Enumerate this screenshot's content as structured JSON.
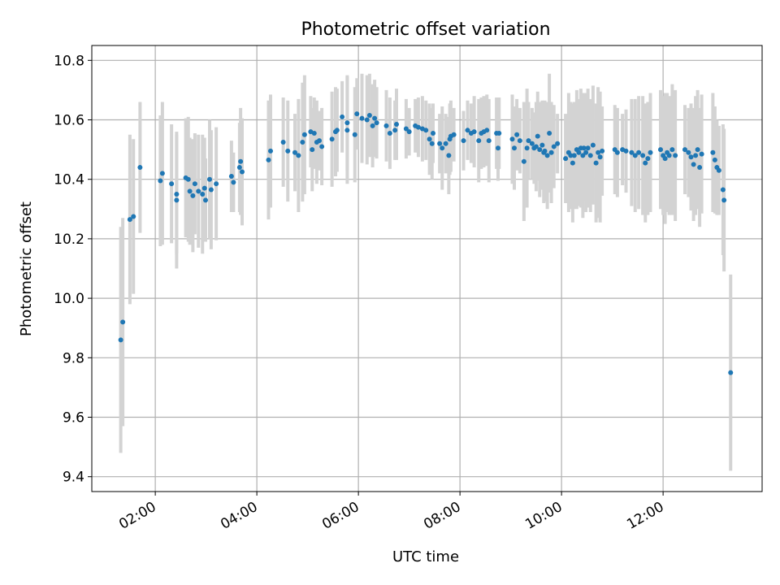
{
  "chart_data": {
    "type": "scatter",
    "title": "Photometric offset variation",
    "xlabel": "UTC time",
    "ylabel": "Photometric offset",
    "xlim": [
      0.75,
      13.95
    ],
    "ylim": [
      9.35,
      10.85
    ],
    "x_ticks": [
      {
        "value": 2,
        "label": "02:00"
      },
      {
        "value": 4,
        "label": "04:00"
      },
      {
        "value": 6,
        "label": "06:00"
      },
      {
        "value": 8,
        "label": "08:00"
      },
      {
        "value": 10,
        "label": "10:00"
      },
      {
        "value": 12,
        "label": "12:00"
      }
    ],
    "y_ticks": [
      {
        "value": 9.4,
        "label": "9.4"
      },
      {
        "value": 9.6,
        "label": "9.6"
      },
      {
        "value": 9.8,
        "label": "9.8"
      },
      {
        "value": 10.0,
        "label": "10.0"
      },
      {
        "value": 10.2,
        "label": "10.2"
      },
      {
        "value": 10.4,
        "label": "10.4"
      },
      {
        "value": 10.6,
        "label": "10.6"
      },
      {
        "value": 10.8,
        "label": "10.8"
      }
    ],
    "grid": true,
    "colors": {
      "marker": "#1f77b4",
      "errorbar": "#d3d3d3",
      "grid": "#b0b0b0",
      "axis": "#000000"
    },
    "series": [
      {
        "name": "offset",
        "points": [
          [
            1.32,
            9.86,
            0.38
          ],
          [
            1.36,
            9.92,
            0.35
          ],
          [
            1.5,
            10.265,
            0.285
          ],
          [
            1.57,
            10.275,
            0.26
          ],
          [
            1.7,
            10.44,
            0.22
          ],
          [
            2.1,
            10.395,
            0.22
          ],
          [
            2.14,
            10.42,
            0.24
          ],
          [
            2.32,
            10.385,
            0.2
          ],
          [
            2.42,
            10.35,
            0.2
          ],
          [
            2.42,
            10.33,
            0.23
          ],
          [
            2.6,
            10.405,
            0.2
          ],
          [
            2.65,
            10.4,
            0.21
          ],
          [
            2.68,
            10.36,
            0.18
          ],
          [
            2.74,
            10.345,
            0.19
          ],
          [
            2.78,
            10.385,
            0.17
          ],
          [
            2.85,
            10.36,
            0.19
          ],
          [
            2.93,
            10.35,
            0.2
          ],
          [
            2.97,
            10.37,
            0.17
          ],
          [
            2.99,
            10.33,
            0.14
          ],
          [
            3.07,
            10.4,
            0.2
          ],
          [
            3.1,
            10.365,
            0.2
          ],
          [
            3.2,
            10.385,
            0.19
          ],
          [
            3.5,
            10.41,
            0.12
          ],
          [
            3.54,
            10.39,
            0.1
          ],
          [
            3.66,
            10.44,
            0.15
          ],
          [
            3.68,
            10.46,
            0.18
          ],
          [
            3.71,
            10.425,
            0.18
          ],
          [
            4.23,
            10.465,
            0.2
          ],
          [
            4.27,
            10.495,
            0.19
          ],
          [
            4.52,
            10.525,
            0.15
          ],
          [
            4.61,
            10.495,
            0.17
          ],
          [
            4.75,
            10.49,
            0.13
          ],
          [
            4.82,
            10.48,
            0.19
          ],
          [
            4.9,
            10.525,
            0.2
          ],
          [
            4.94,
            10.55,
            0.2
          ],
          [
            5.06,
            10.56,
            0.12
          ],
          [
            5.09,
            10.5,
            0.14
          ],
          [
            5.13,
            10.555,
            0.12
          ],
          [
            5.18,
            10.525,
            0.14
          ],
          [
            5.23,
            10.53,
            0.1
          ],
          [
            5.28,
            10.51,
            0.13
          ],
          [
            5.48,
            10.535,
            0.16
          ],
          [
            5.55,
            10.56,
            0.15
          ],
          [
            5.58,
            10.565,
            0.14
          ],
          [
            5.68,
            10.61,
            0.12
          ],
          [
            5.78,
            10.59,
            0.16
          ],
          [
            5.78,
            10.565,
            0.18
          ],
          [
            5.93,
            10.55,
            0.16
          ],
          [
            5.97,
            10.62,
            0.12
          ],
          [
            6.07,
            10.605,
            0.15
          ],
          [
            6.17,
            10.6,
            0.15
          ],
          [
            6.22,
            10.615,
            0.14
          ],
          [
            6.28,
            10.58,
            0.14
          ],
          [
            6.32,
            10.605,
            0.13
          ],
          [
            6.36,
            10.59,
            0.12
          ],
          [
            6.55,
            10.58,
            0.12
          ],
          [
            6.62,
            10.555,
            0.12
          ],
          [
            6.72,
            10.565,
            0.1
          ],
          [
            6.75,
            10.585,
            0.12
          ],
          [
            6.94,
            10.57,
            0.1
          ],
          [
            7.0,
            10.56,
            0.08
          ],
          [
            7.12,
            10.58,
            0.09
          ],
          [
            7.18,
            10.575,
            0.1
          ],
          [
            7.26,
            10.57,
            0.11
          ],
          [
            7.33,
            10.565,
            0.1
          ],
          [
            7.4,
            10.535,
            0.12
          ],
          [
            7.45,
            10.52,
            0.12
          ],
          [
            7.47,
            10.555,
            0.1
          ],
          [
            7.6,
            10.52,
            0.1
          ],
          [
            7.65,
            10.505,
            0.14
          ],
          [
            7.72,
            10.52,
            0.1
          ],
          [
            7.78,
            10.48,
            0.13
          ],
          [
            7.8,
            10.535,
            0.12
          ],
          [
            7.82,
            10.545,
            0.12
          ],
          [
            7.88,
            10.55,
            0.09
          ],
          [
            8.07,
            10.53,
            0.1
          ],
          [
            8.15,
            10.565,
            0.1
          ],
          [
            8.22,
            10.555,
            0.1
          ],
          [
            8.28,
            10.56,
            0.12
          ],
          [
            8.37,
            10.53,
            0.14
          ],
          [
            8.42,
            10.555,
            0.12
          ],
          [
            8.47,
            10.56,
            0.12
          ],
          [
            8.53,
            10.565,
            0.12
          ],
          [
            8.57,
            10.53,
            0.14
          ],
          [
            8.72,
            10.555,
            0.12
          ],
          [
            8.75,
            10.505,
            0.11
          ],
          [
            8.77,
            10.555,
            0.12
          ],
          [
            9.03,
            10.535,
            0.15
          ],
          [
            9.07,
            10.505,
            0.14
          ],
          [
            9.12,
            10.55,
            0.12
          ],
          [
            9.18,
            10.53,
            0.11
          ],
          [
            9.26,
            10.46,
            0.2
          ],
          [
            9.32,
            10.505,
            0.2
          ],
          [
            9.35,
            10.53,
            0.13
          ],
          [
            9.42,
            10.52,
            0.12
          ],
          [
            9.46,
            10.505,
            0.12
          ],
          [
            9.5,
            10.51,
            0.15
          ],
          [
            9.53,
            10.545,
            0.15
          ],
          [
            9.57,
            10.5,
            0.16
          ],
          [
            9.62,
            10.515,
            0.15
          ],
          [
            9.65,
            10.49,
            0.17
          ],
          [
            9.67,
            10.495,
            0.17
          ],
          [
            9.72,
            10.48,
            0.18
          ],
          [
            9.76,
            10.555,
            0.2
          ],
          [
            9.8,
            10.49,
            0.17
          ],
          [
            9.85,
            10.51,
            0.14
          ],
          [
            9.92,
            10.52,
            0.1
          ],
          [
            10.08,
            10.47,
            0.15
          ],
          [
            10.14,
            10.49,
            0.2
          ],
          [
            10.18,
            10.48,
            0.18
          ],
          [
            10.22,
            10.455,
            0.2
          ],
          [
            10.25,
            10.48,
            0.18
          ],
          [
            10.3,
            10.5,
            0.2
          ],
          [
            10.34,
            10.49,
            0.18
          ],
          [
            10.38,
            10.505,
            0.2
          ],
          [
            10.42,
            10.48,
            0.21
          ],
          [
            10.44,
            10.505,
            0.18
          ],
          [
            10.48,
            10.49,
            0.2
          ],
          [
            10.52,
            10.505,
            0.2
          ],
          [
            10.57,
            10.48,
            0.19
          ],
          [
            10.62,
            10.515,
            0.2
          ],
          [
            10.68,
            10.455,
            0.2
          ],
          [
            10.72,
            10.49,
            0.22
          ],
          [
            10.76,
            10.475,
            0.22
          ],
          [
            10.8,
            10.495,
            0.15
          ],
          [
            11.05,
            10.5,
            0.15
          ],
          [
            11.1,
            10.49,
            0.15
          ],
          [
            11.2,
            10.5,
            0.12
          ],
          [
            11.27,
            10.495,
            0.14
          ],
          [
            11.38,
            10.49,
            0.18
          ],
          [
            11.45,
            10.48,
            0.19
          ],
          [
            11.52,
            10.49,
            0.19
          ],
          [
            11.6,
            10.48,
            0.2
          ],
          [
            11.65,
            10.455,
            0.2
          ],
          [
            11.7,
            10.47,
            0.19
          ],
          [
            11.75,
            10.49,
            0.2
          ],
          [
            11.95,
            10.5,
            0.2
          ],
          [
            12.0,
            10.48,
            0.2
          ],
          [
            12.04,
            10.47,
            0.22
          ],
          [
            12.08,
            10.49,
            0.2
          ],
          [
            12.12,
            10.48,
            0.2
          ],
          [
            12.18,
            10.5,
            0.22
          ],
          [
            12.24,
            10.48,
            0.22
          ],
          [
            12.43,
            10.5,
            0.15
          ],
          [
            12.5,
            10.49,
            0.15
          ],
          [
            12.55,
            10.475,
            0.18
          ],
          [
            12.6,
            10.45,
            0.19
          ],
          [
            12.64,
            10.48,
            0.2
          ],
          [
            12.68,
            10.5,
            0.2
          ],
          [
            12.72,
            10.44,
            0.2
          ],
          [
            12.76,
            10.485,
            0.2
          ],
          [
            12.98,
            10.49,
            0.2
          ],
          [
            13.02,
            10.465,
            0.18
          ],
          [
            13.06,
            10.44,
            0.16
          ],
          [
            13.1,
            10.43,
            0.15
          ],
          [
            13.18,
            10.365,
            0.22
          ],
          [
            13.2,
            10.33,
            0.24
          ],
          [
            13.33,
            9.75,
            0.33
          ]
        ]
      }
    ]
  }
}
